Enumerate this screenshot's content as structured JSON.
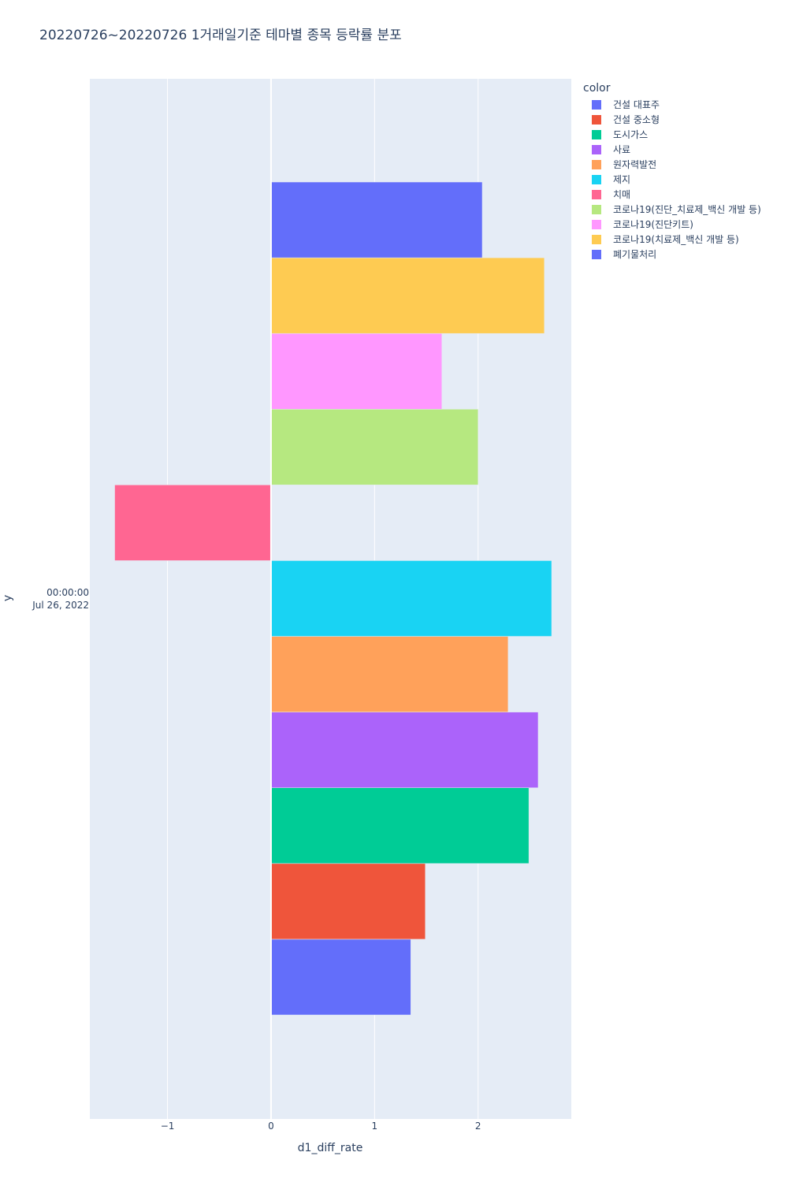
{
  "chart_title": "20220726~20220726 1거래일기준 테마별 종목 등락률 분포",
  "chart_data": {
    "type": "bar",
    "orientation": "horizontal",
    "title": "20220726~20220726 1거래일기준 테마별 종목 등락률 분포",
    "xlabel": "d1_diff_rate",
    "ylabel": "y",
    "y_category": [
      "00:00:00",
      "Jul 26, 2022"
    ],
    "xlim": [
      -1.75,
      2.9
    ],
    "x_ticks": [
      "−1",
      "0",
      "1",
      "2"
    ],
    "x_tick_values": [
      -1,
      0,
      1,
      2
    ],
    "grid": true,
    "legend_title": "color",
    "legend_position": "right",
    "series": [
      {
        "name": "건설 대표주",
        "value": 1.35,
        "color": "#636efa"
      },
      {
        "name": "건설 중소형",
        "value": 1.49,
        "color": "#EF553B"
      },
      {
        "name": "도시가스",
        "value": 2.49,
        "color": "#00cc96"
      },
      {
        "name": "사료",
        "value": 2.58,
        "color": "#ab63fa"
      },
      {
        "name": "원자력발전",
        "value": 2.29,
        "color": "#FFA15A"
      },
      {
        "name": "제지",
        "value": 2.71,
        "color": "#19d3f3"
      },
      {
        "name": "치매",
        "value": -1.51,
        "color": "#FF6692"
      },
      {
        "name": "코로나19(진단_치료제_백신 개발 등)",
        "value": 2.0,
        "color": "#B6E880"
      },
      {
        "name": "코로나19(진단키트)",
        "value": 1.65,
        "color": "#FF97FF"
      },
      {
        "name": "코로나19(치료제_백신 개발 등)",
        "value": 2.64,
        "color": "#FECB52"
      },
      {
        "name": "폐기물처리",
        "value": 2.04,
        "color": "#636efa"
      }
    ]
  }
}
